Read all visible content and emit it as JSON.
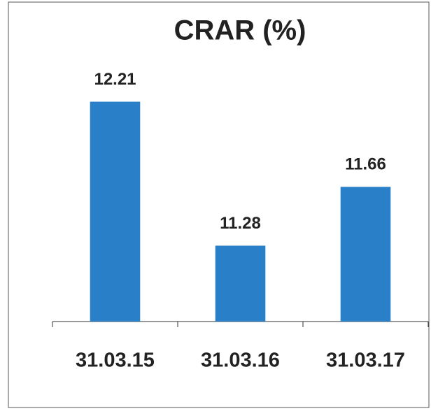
{
  "chart_data": {
    "type": "bar",
    "title": "CRAR (%)",
    "categories": [
      "31.03.15",
      "31.03.16",
      "31.03.17"
    ],
    "values": [
      12.21,
      11.28,
      11.66
    ],
    "color": "#2a80c8",
    "ylim": [
      10.79,
      12.7
    ]
  }
}
